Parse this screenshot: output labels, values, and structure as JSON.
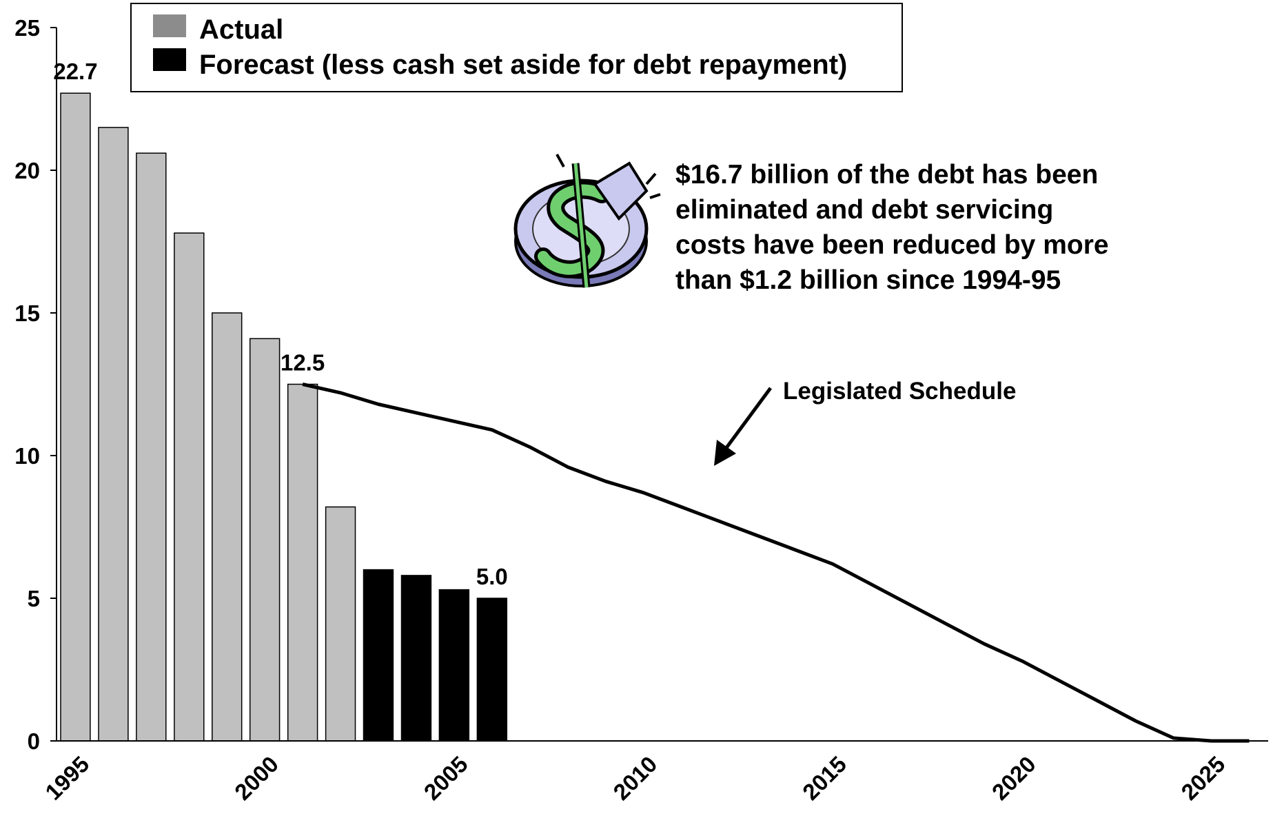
{
  "chart_data": {
    "type": "bar",
    "title": "",
    "xlabel": "",
    "ylabel": "",
    "ylim": [
      0,
      25
    ],
    "yticks": [
      0,
      5,
      10,
      15,
      20,
      25
    ],
    "xlim": [
      1994.5,
      2026.5
    ],
    "xticks": [
      "1995",
      "2000",
      "2005",
      "2010",
      "2015",
      "2020",
      "2025"
    ],
    "grid": false,
    "legend_position": "top",
    "series": [
      {
        "name": "Actual",
        "color": "#c0c0c0",
        "x": [
          1995,
          1996,
          1997,
          1998,
          1999,
          2000,
          2001,
          2002
        ],
        "values": [
          22.7,
          21.5,
          20.6,
          17.8,
          15.0,
          14.1,
          12.5,
          8.2
        ]
      },
      {
        "name": "Forecast (less cash set aside for debt repayment)",
        "color": "#000000",
        "x": [
          2003,
          2004,
          2005,
          2006
        ],
        "values": [
          6.0,
          5.8,
          5.3,
          5.0
        ]
      },
      {
        "name": "Legislated Schedule",
        "type": "line",
        "color": "#000000",
        "x": [
          2001,
          2002,
          2003,
          2004,
          2005,
          2006,
          2007,
          2008,
          2009,
          2010,
          2011,
          2012,
          2013,
          2014,
          2015,
          2016,
          2017,
          2018,
          2019,
          2020,
          2021,
          2022,
          2023,
          2024,
          2025,
          2026
        ],
        "values": [
          12.5,
          12.2,
          11.8,
          11.5,
          11.2,
          10.9,
          10.3,
          9.6,
          9.1,
          8.7,
          8.2,
          7.7,
          7.2,
          6.7,
          6.2,
          5.5,
          4.8,
          4.1,
          3.4,
          2.8,
          2.1,
          1.4,
          0.7,
          0.1,
          -0.4,
          0.0
        ]
      }
    ],
    "data_labels": [
      {
        "x": 1995,
        "value": 22.7,
        "text": "22.7"
      },
      {
        "x": 2001,
        "value": 12.5,
        "text": "12.5"
      },
      {
        "x": 2006,
        "value": 5.0,
        "text": "5.0"
      }
    ],
    "annotations": [
      "$16.7 billion of the debt has been",
      "eliminated and debt servicing",
      "costs have been reduced by more",
      "than $1.2 billion since 1994-95"
    ],
    "line_callout": "Legislated Schedule"
  },
  "colors": {
    "actual_legend_swatch": "#8c8c8c",
    "coin_face": "#c9c9ef",
    "coin_dollar": "#6fcf6f"
  },
  "icons": [
    "dollar-coin-icon"
  ]
}
